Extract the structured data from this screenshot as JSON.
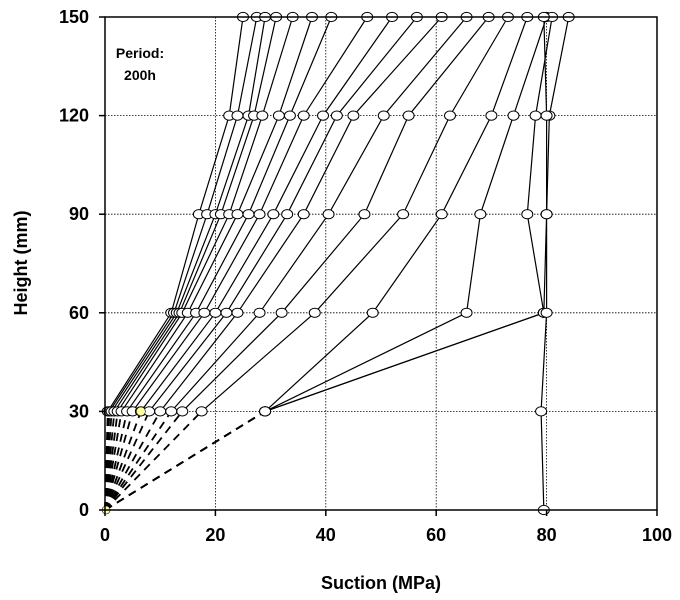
{
  "chart_data": {
    "type": "line",
    "xlabel": "Suction (MPa)",
    "ylabel": "Height (mm)",
    "xlim": [
      0,
      100
    ],
    "ylim": [
      0,
      150
    ],
    "xticks": [
      "0",
      "20",
      "40",
      "60",
      "80",
      "100"
    ],
    "yticks": [
      "0",
      "30",
      "60",
      "90",
      "120",
      "150"
    ],
    "grid": "dotted",
    "annotation": [
      "Period:",
      "200h"
    ],
    "heights": [
      0,
      30,
      60,
      90,
      120,
      150
    ],
    "series": [
      {
        "values": [
          0,
          0.5,
          12,
          17,
          22.5,
          25
        ]
      },
      {
        "values": [
          0,
          0.8,
          12.5,
          18.5,
          24,
          27.5
        ]
      },
      {
        "values": [
          0,
          1.2,
          13,
          20,
          26,
          29
        ]
      },
      {
        "values": [
          0,
          1.7,
          13.5,
          21,
          27,
          31
        ]
      },
      {
        "values": [
          0,
          2.3,
          14,
          22.5,
          28.5,
          34
        ]
      },
      {
        "values": [
          0,
          3,
          15,
          24,
          31.5,
          37.5
        ]
      },
      {
        "values": [
          0,
          4,
          16.5,
          26,
          33.5,
          41
        ]
      },
      {
        "values": [
          0,
          5,
          18,
          28,
          36,
          47.5
        ]
      },
      {
        "values": [
          0,
          6.5,
          20,
          30.5,
          39.5,
          52
        ]
      },
      {
        "values": [
          0,
          8,
          22,
          33,
          42,
          56.5
        ]
      },
      {
        "values": [
          0,
          10,
          24,
          36,
          45,
          61
        ]
      },
      {
        "values": [
          0,
          12,
          28,
          40.5,
          50.5,
          65.5
        ]
      },
      {
        "values": [
          0,
          14,
          32,
          47,
          55,
          69.5
        ]
      },
      {
        "values": [
          0,
          17.5,
          38,
          54,
          62.5,
          73
        ]
      },
      {
        "values": [
          0,
          29,
          48.5,
          61,
          70,
          76.5
        ]
      },
      {
        "values": [
          0,
          29,
          65.5,
          68,
          74,
          80
        ]
      },
      {
        "values": [
          0,
          29,
          79.5,
          76.5,
          78,
          81
        ]
      },
      {
        "values": [
          0,
          29,
          79.5,
          80,
          80.5,
          84
        ]
      },
      {
        "values": [
          79.5,
          79,
          80,
          80,
          80,
          79.5
        ]
      }
    ]
  }
}
